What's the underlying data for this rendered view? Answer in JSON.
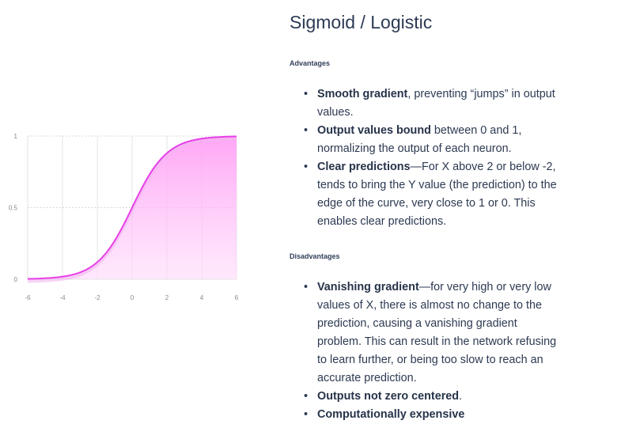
{
  "title": "Sigmoid / Logistic",
  "advantages": {
    "label": "Advantages",
    "items": [
      {
        "bold": "Smooth gradient",
        "text": ", preventing “jumps” in output values."
      },
      {
        "bold": "Output values bound",
        "text": " between 0 and 1, normalizing the output of each neuron."
      },
      {
        "bold": "Clear predictions",
        "text": "—For X above 2 or below -2, tends to bring the Y value (the prediction) to the edge of the curve, very close to 1 or 0. This enables clear predictions."
      }
    ]
  },
  "disadvantages": {
    "label": "Disadvantages",
    "items": [
      {
        "bold": "Vanishing gradient",
        "text": "—for very high or very low values of X, there is almost no change to the prediction, causing a vanishing gradient problem. This can result in the network refusing to learn further, or being too slow to reach an accurate prediction."
      },
      {
        "bold": "Outputs not zero centered",
        "text": "."
      },
      {
        "bold": "Computationally expensive",
        "text": ""
      }
    ]
  },
  "chart_data": {
    "type": "area",
    "function": "sigmoid",
    "xlim": [
      -6,
      6
    ],
    "ylim": [
      0,
      1
    ],
    "x_ticks": [
      "-6",
      "-4",
      "-2",
      "0",
      "2",
      "4",
      "6"
    ],
    "y_ticks": [
      "0",
      "0.5",
      "1"
    ],
    "grid": true,
    "line_color": "#e83ee8",
    "fill_color": "#ff9cf5"
  }
}
